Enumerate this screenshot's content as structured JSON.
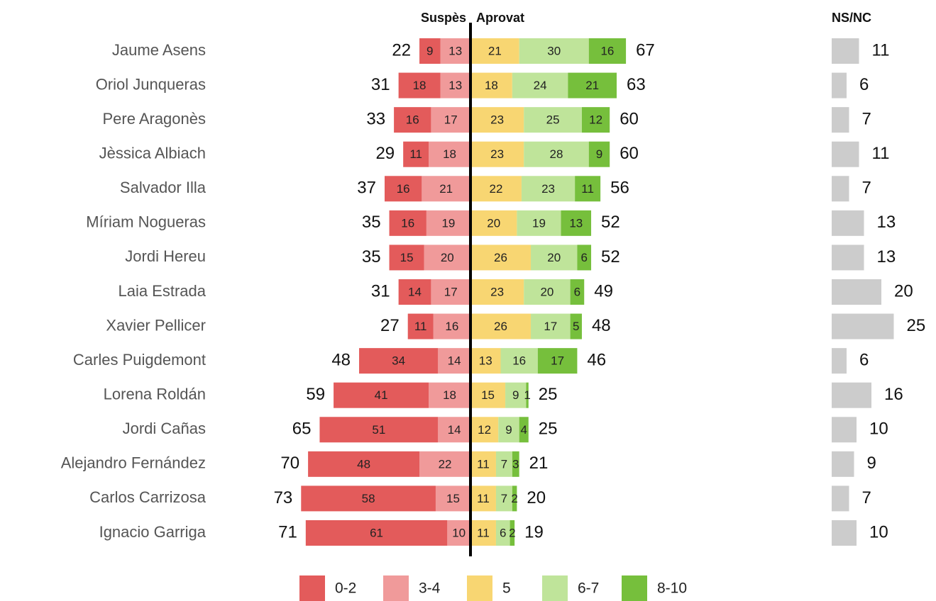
{
  "chart_data": {
    "type": "diverging_bar",
    "left_label": "Suspès",
    "right_label": "Aprovat",
    "categories": [
      "Jaume Asens",
      "Oriol Junqueras",
      "Pere Aragonès",
      "Jèssica Albiach",
      "Salvador Illa",
      "Míriam Nogueras",
      "Jordi Hereu",
      "Laia Estrada",
      "Xavier Pellicer",
      "Carles Puigdemont",
      "Lorena Roldán",
      "Jordi Cañas",
      "Alejandro Fernández",
      "Carlos Carrizosa",
      "Ignacio Garriga"
    ],
    "series": [
      {
        "name": "0-2",
        "color": "#e35b5b",
        "side": "left",
        "values": [
          9,
          18,
          16,
          11,
          16,
          16,
          15,
          14,
          11,
          34,
          41,
          51,
          48,
          58,
          61
        ]
      },
      {
        "name": "3-4",
        "color": "#f09a9a",
        "side": "left",
        "values": [
          13,
          13,
          17,
          18,
          21,
          19,
          20,
          17,
          16,
          14,
          18,
          14,
          22,
          15,
          10
        ]
      },
      {
        "name": "5",
        "color": "#f8d672",
        "side": "right",
        "values": [
          21,
          18,
          23,
          23,
          22,
          20,
          26,
          23,
          26,
          13,
          15,
          12,
          11,
          11,
          11
        ]
      },
      {
        "name": "6-7",
        "color": "#bfe49a",
        "side": "right",
        "values": [
          30,
          24,
          25,
          28,
          23,
          19,
          20,
          20,
          17,
          16,
          9,
          9,
          7,
          7,
          6
        ]
      },
      {
        "name": "8-10",
        "color": "#76bf3c",
        "side": "right",
        "values": [
          16,
          21,
          12,
          9,
          11,
          13,
          6,
          6,
          5,
          17,
          1,
          4,
          3,
          2,
          2
        ]
      }
    ],
    "left_totals": [
      22,
      31,
      33,
      29,
      37,
      35,
      35,
      31,
      27,
      48,
      59,
      65,
      70,
      73,
      71
    ],
    "right_totals": [
      67,
      63,
      60,
      60,
      56,
      52,
      52,
      49,
      48,
      46,
      25,
      25,
      21,
      20,
      19
    ],
    "nsnc": {
      "label": "NS/NC",
      "color": "#cccccc",
      "values": [
        11,
        6,
        7,
        11,
        7,
        13,
        13,
        20,
        25,
        6,
        16,
        10,
        9,
        7,
        10
      ]
    }
  }
}
